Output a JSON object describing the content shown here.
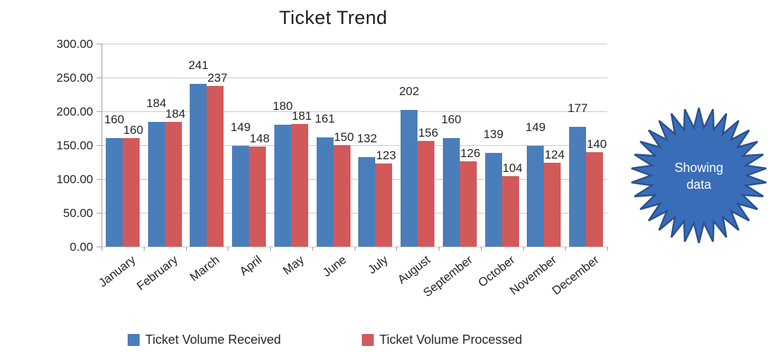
{
  "title": "Ticket Trend",
  "chart_data": {
    "type": "bar",
    "title": "Ticket Trend",
    "categories": [
      "January",
      "February",
      "March",
      "April",
      "May",
      "June",
      "July",
      "August",
      "September",
      "October",
      "November",
      "December"
    ],
    "series": [
      {
        "name": "Ticket Volume Received",
        "color": "#4a7ebb",
        "values": [
          160,
          184,
          241,
          149,
          180,
          161,
          132,
          202,
          160,
          139,
          149,
          177
        ]
      },
      {
        "name": "Ticket Volume Processed",
        "color": "#d2595a",
        "values": [
          160,
          184,
          237,
          148,
          181,
          150,
          123,
          156,
          126,
          104,
          124,
          140
        ]
      }
    ],
    "ylim": [
      0,
      300
    ],
    "ytick_step": 50,
    "ytick_labels": [
      "0.00",
      "50.00",
      "100.00",
      "150.00",
      "200.00",
      "250.00",
      "300.00"
    ],
    "grid": true,
    "data_labels": true,
    "legend_position": "bottom"
  },
  "legend": {
    "received_label": "Ticket Volume Received",
    "processed_label": "Ticket Volume Processed"
  },
  "badge": {
    "line1": "Showing",
    "line2": "data",
    "fill_color": "#3a6db8",
    "border_color": "#2a5290",
    "text_color": "#ffffff"
  },
  "colors": {
    "gridline": "#c9c9c9",
    "axis": "#a0a0a0",
    "label_text": "#262626",
    "title_text": "#1c1c1c",
    "background": "#ffffff"
  }
}
